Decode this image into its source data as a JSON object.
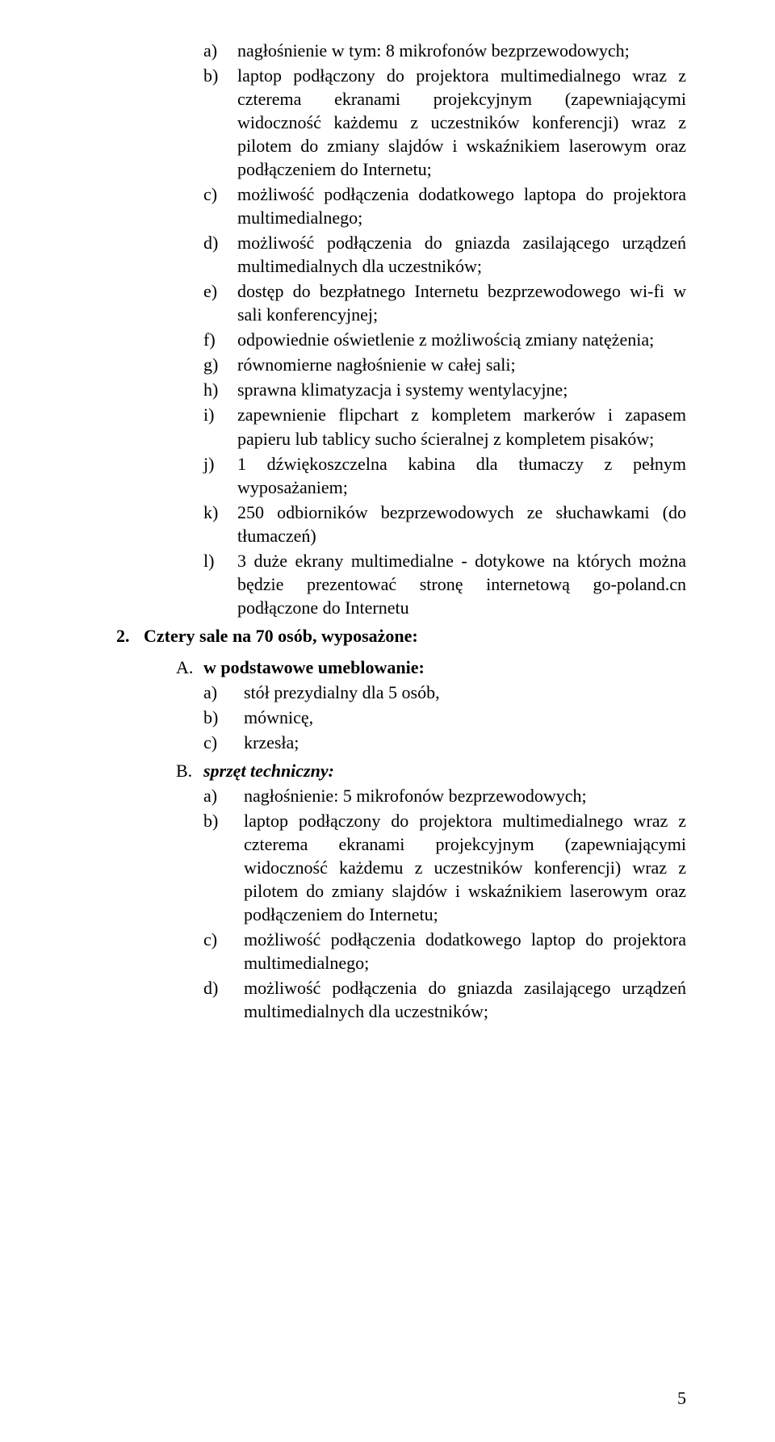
{
  "topList": {
    "items": [
      {
        "k": "a)",
        "t": "nagłośnienie w tym: 8 mikrofonów bezprzewodowych;"
      },
      {
        "k": "b)",
        "t": "laptop podłączony do projektora multimedialnego wraz z czterema ekranami projekcyjnym (zapewniającymi widoczność każdemu z uczestników konferencji) wraz z pilotem do zmiany slajdów i wskaźnikiem laserowym oraz podłączeniem do Internetu;"
      },
      {
        "k": "c)",
        "t": "możliwość podłączenia dodatkowego laptopa do projektora multimedialnego;"
      },
      {
        "k": "d)",
        "t": "możliwość podłączenia do gniazda zasilającego urządzeń multimedialnych dla uczestników;"
      },
      {
        "k": "e)",
        "t": "dostęp do bezpłatnego Internetu bezprzewodowego wi-fi w sali konferencyjnej;"
      },
      {
        "k": "f)",
        "t": "odpowiednie oświetlenie z możliwością zmiany natężenia;"
      },
      {
        "k": "g)",
        "t": "równomierne nagłośnienie w całej sali;"
      },
      {
        "k": "h)",
        "t": "sprawna klimatyzacja i systemy wentylacyjne;"
      },
      {
        "k": "i)",
        "t": "zapewnienie flipchart z kompletem markerów i zapasem papieru lub tablicy sucho ścieralnej z kompletem pisaków;"
      },
      {
        "k": "j)",
        "t": "1 dźwiękoszczelna kabina dla tłumaczy z pełnym wyposażaniem;"
      },
      {
        "k": "k)",
        "t": "250 odbiorników bezprzewodowych ze słuchawkami (do tłumaczeń)"
      },
      {
        "k": "l)",
        "t": "3 duże ekrany multimedialne - dotykowe na których można będzie prezentować stronę internetową go-poland.cn podłączone do Internetu"
      }
    ]
  },
  "section2": {
    "numMarker": "2.",
    "title": "Cztery sale na 70 osób, wyposażone:",
    "A": {
      "marker": "A.",
      "label": "w podstawowe umeblowanie:",
      "items": [
        {
          "k": "a)",
          "t": "stół prezydialny dla 5 osób,"
        },
        {
          "k": "b)",
          "t": "mównicę,"
        },
        {
          "k": "c)",
          "t": "krzesła;"
        }
      ]
    },
    "B": {
      "marker": "B.",
      "label": "sprzęt techniczny:",
      "items": [
        {
          "k": "a)",
          "t": "nagłośnienie: 5 mikrofonów bezprzewodowych;"
        },
        {
          "k": "b)",
          "t": "laptop podłączony do projektora multimedialnego wraz z czterema ekranami projekcyjnym (zapewniającymi widoczność każdemu z uczestników konferencji) wraz z pilotem do zmiany slajdów i wskaźnikiem laserowym oraz podłączeniem do Internetu;"
        },
        {
          "k": "c)",
          "t": "możliwość podłączenia dodatkowego laptop do projektora multimedialnego;"
        },
        {
          "k": "d)",
          "t": "możliwość podłączenia do gniazda zasilającego urządzeń multimedialnych dla uczestników;"
        }
      ]
    }
  },
  "pageNumber": "5"
}
